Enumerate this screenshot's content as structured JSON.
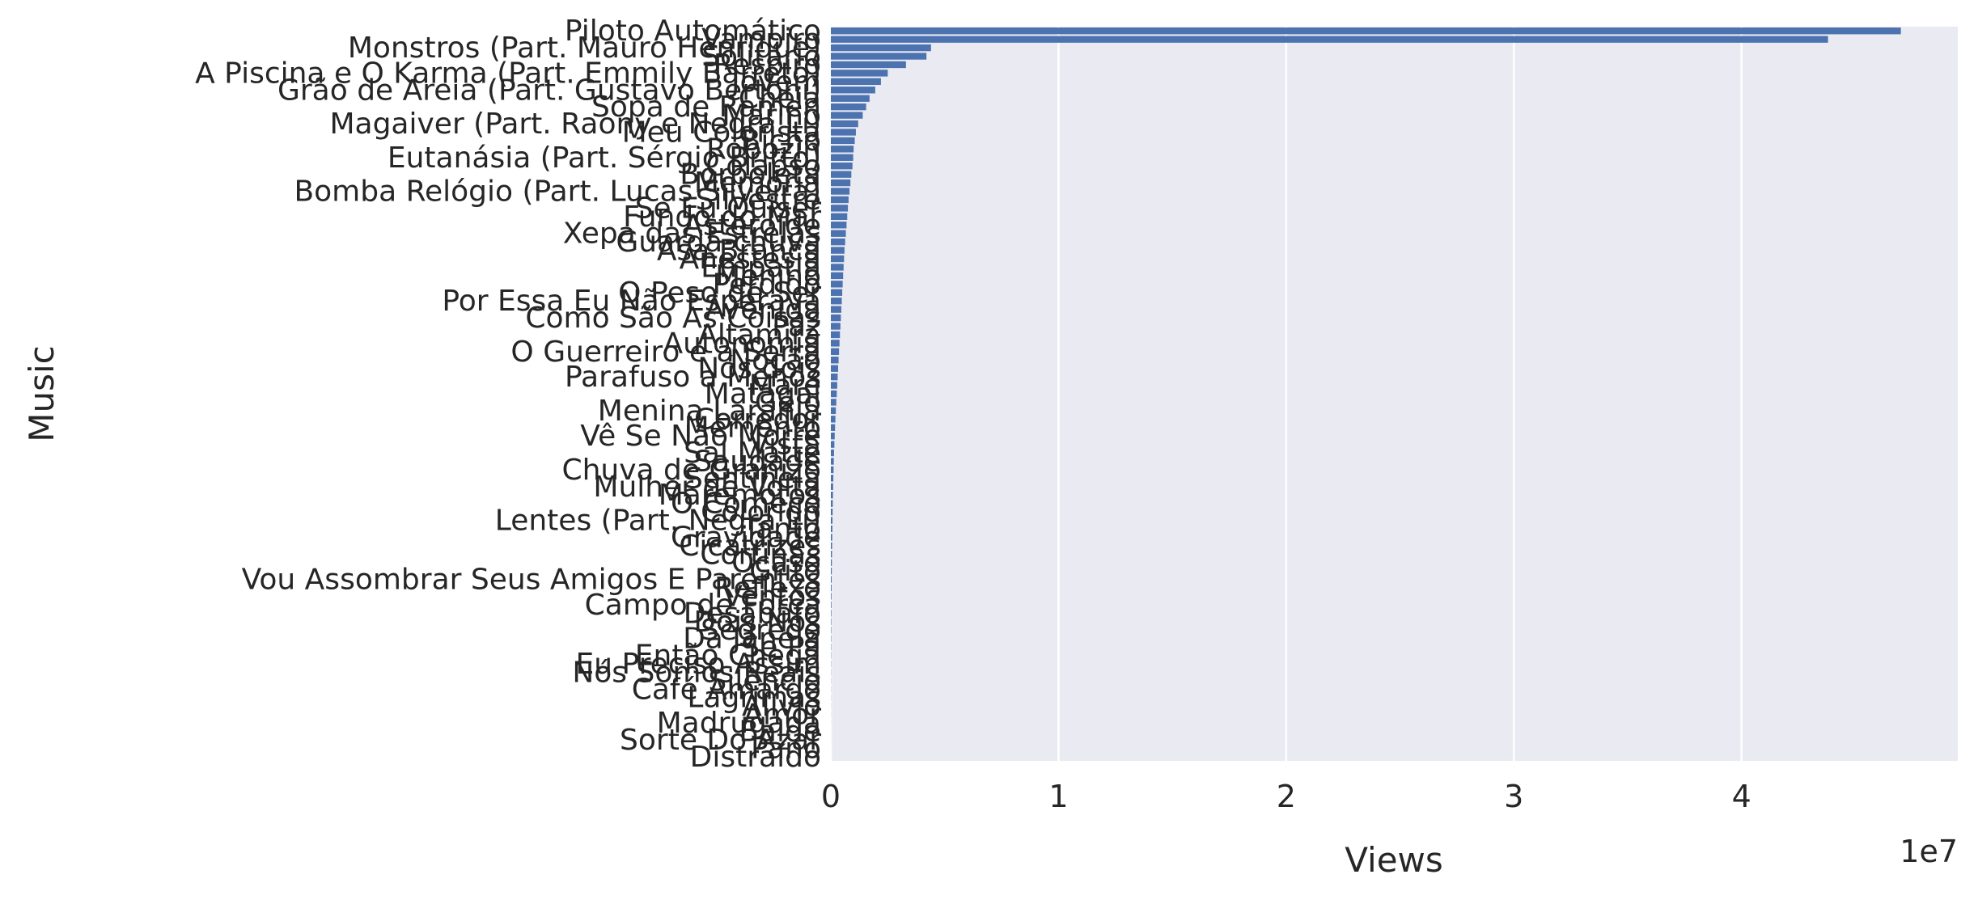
{
  "chart_data": {
    "type": "bar",
    "orientation": "horizontal",
    "xlabel": "Views",
    "ylabel": "Music",
    "x_offset_text": "1e7",
    "xlim": [
      0,
      49500000
    ],
    "xticks": [
      0,
      10000000,
      20000000,
      30000000,
      40000000
    ],
    "xtick_labels": [
      "0",
      "1",
      "2",
      "3",
      "4"
    ],
    "grid": true,
    "colors": {
      "bar": "#4c72b0",
      "plot_bg": "#eaeaf2",
      "grid": "#ffffff",
      "text": "#262626"
    },
    "categories": [
      "Piloto Automático",
      "Vampiro",
      "Monstros (Part. Mauro Henrique)",
      "Solitário",
      "Respiro",
      "A Piscina e O Karma (Part. Emmily Barreto)",
      "Jovem",
      "Grão de Areia (Part. Gustavo Bertoni)",
      "Cheia",
      "Sopa de Ramen",
      "Marino",
      "Magaiver (Part. Raony e Negra Li)",
      "Meu Colorista",
      "Bicho",
      "Robozin",
      "Eutanásia (Part. Sérgio Britto)",
      "Colapso",
      "Borboleta",
      "Memória",
      "Bomba Relógio (Part. Lucas Silveira)",
      "Silvestre",
      "Se Eu Quiser",
      "Fundo do Mar",
      "Asteroide",
      "Xepa das Estrelas",
      "Guarda-chuva",
      "Asa Branca",
      "Anestesia",
      "Empatia",
      "Menino",
      "Perdido",
      "O Peso de Ser",
      "Por Essa Eu Não Esperava",
      "Avenida",
      "Como São As Coisas",
      "Paz",
      "Altamira",
      "Autonomia",
      "O Guerreiro e a Serra",
      "Noção",
      "Nós dois",
      "Parafuso a Menos",
      "Maré",
      "Matagal",
      "Gelo",
      "Menina Laranja",
      "Corredor",
      "Memento",
      "Vê Se Não Morre",
      "Vista",
      "Sal Matte",
      "Saudade",
      "Chuva de Granizo",
      "Sentinela",
      "Mulher de Volta",
      "Maremotos",
      "O Começo",
      "Colorido",
      "Lentes (Part. Negra Li)",
      "Tanto",
      "Gravidade",
      "Cicatrizes",
      "Cortinas",
      "Ocaso",
      "Grito",
      "Vou Assombrar Seus Amigos E Parentes",
      "Reflexo",
      "Ventos",
      "Campo de Força",
      "Desabafo",
      "Dois Nós",
      "Segredo",
      "Da Janela",
      "Se Pá",
      "Então Chega",
      "Eu Preciso Assim",
      "Nós Somos Reais",
      "Silêncio",
      "Café Amargo",
      "Lagrimas",
      "Alívio",
      "Amor",
      "Madrugada",
      "Balde",
      "Sorte Do Azar",
      "Pano",
      "Distraído"
    ],
    "values": [
      47000000,
      43800000,
      4400000,
      4200000,
      3300000,
      2500000,
      2200000,
      1950000,
      1700000,
      1550000,
      1400000,
      1200000,
      1100000,
      1050000,
      1000000,
      980000,
      950000,
      900000,
      860000,
      820000,
      780000,
      750000,
      720000,
      690000,
      660000,
      630000,
      600000,
      580000,
      560000,
      540000,
      520000,
      500000,
      480000,
      460000,
      440000,
      420000,
      400000,
      380000,
      360000,
      340000,
      320000,
      300000,
      280000,
      260000,
      240000,
      220000,
      200000,
      185000,
      170000,
      155000,
      140000,
      130000,
      120000,
      110000,
      100000,
      92000,
      85000,
      78000,
      72000,
      66000,
      60000,
      55000,
      50000,
      45000,
      41000,
      37000,
      33000,
      30000,
      27000,
      24000,
      21000,
      19000,
      17000,
      15000,
      13000,
      11000,
      9000,
      8000,
      7000,
      6000,
      5000,
      4000,
      3000,
      2000,
      1500,
      1000,
      500
    ]
  }
}
